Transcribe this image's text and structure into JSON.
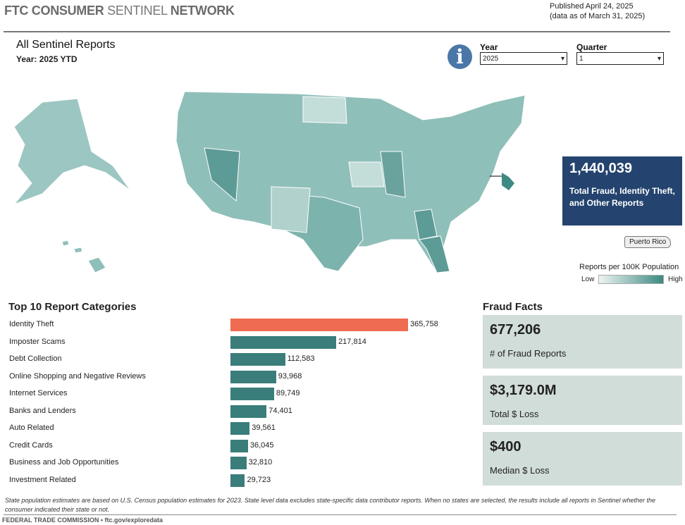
{
  "header": {
    "brand_bold1": "FTC CONSUMER",
    "brand_light": "SENTINEL",
    "brand_bold2": "NETWORK",
    "published": "Published April 24, 2025",
    "data_as_of": "(data as of March 31, 2025)"
  },
  "report": {
    "title": "All Sentinel Reports",
    "subtitle": "Year: 2025 YTD"
  },
  "filters": {
    "info_icon": "info-icon",
    "year_label": "Year",
    "year_value": "2025",
    "quarter_label": "Quarter",
    "quarter_value": "1"
  },
  "total": {
    "value": "1,440,039",
    "label": "Total Fraud, Identity Theft, and Other Reports"
  },
  "map": {
    "territory_label": "Puerto Rico",
    "legend_title": "Reports per 100K Population",
    "legend_low": "Low",
    "legend_high": "High",
    "colors": {
      "low": "#eef4f2",
      "high": "#3d8a82"
    }
  },
  "categories": {
    "title": "Top 10 Report Categories",
    "highlight_color": "#ef6b51",
    "bar_color": "#3a7d7a",
    "items": [
      {
        "label": "Identity Theft",
        "value": 365758,
        "display": "365,758"
      },
      {
        "label": "Imposter Scams",
        "value": 217814,
        "display": "217,814"
      },
      {
        "label": "Debt Collection",
        "value": 112583,
        "display": "112,583"
      },
      {
        "label": "Online Shopping and Negative Reviews",
        "value": 93968,
        "display": "93,968"
      },
      {
        "label": "Internet Services",
        "value": 89749,
        "display": "89,749"
      },
      {
        "label": "Banks and Lenders",
        "value": 74401,
        "display": "74,401"
      },
      {
        "label": "Auto Related",
        "value": 39561,
        "display": "39,561"
      },
      {
        "label": "Credit Cards",
        "value": 36045,
        "display": "36,045"
      },
      {
        "label": "Business and Job Opportunities",
        "value": 32810,
        "display": "32,810"
      },
      {
        "label": "Investment Related",
        "value": 29723,
        "display": "29,723"
      }
    ]
  },
  "fraud_facts": {
    "title": "Fraud Facts",
    "items": [
      {
        "value": "677,206",
        "label": "# of Fraud Reports"
      },
      {
        "value": "$3,179.0M",
        "label": "Total $ Loss"
      },
      {
        "value": "$400",
        "label": "Median $ Loss"
      }
    ]
  },
  "footer": {
    "note": "State population estimates are based on U.S. Census population estimates for 2023. State level data excludes state-specific data contributor reports. When no states are selected, the results include all reports in Sentinel whether the consumer indicated their state or not.",
    "credit": "FEDERAL TRADE COMMISSION • ftc.gov/exploredata"
  }
}
